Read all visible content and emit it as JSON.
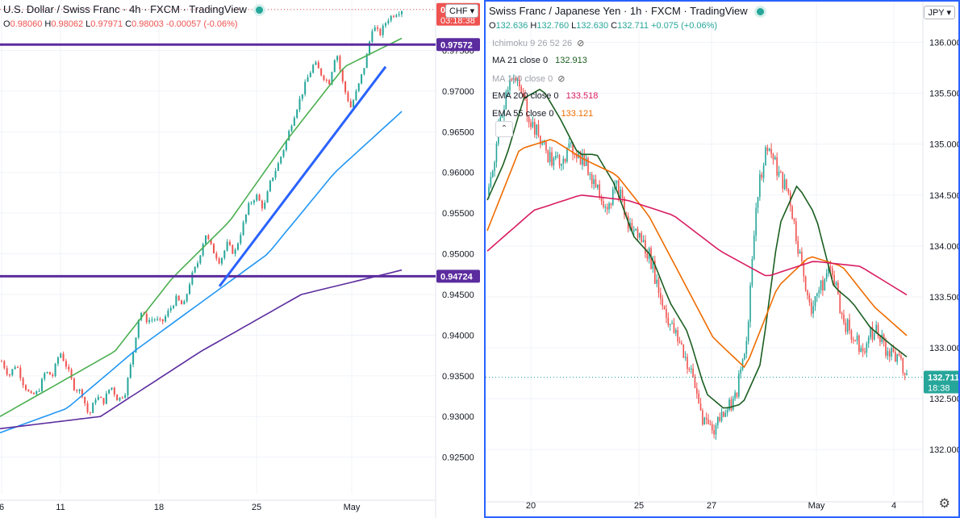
{
  "left_chart": {
    "header": {
      "symbol": "U.S. Dollar / Swiss Franc",
      "interval": "4h",
      "broker": "FXCM",
      "platform": "TradingView"
    },
    "ohlc": {
      "o": "0.98060",
      "h": "0.98062",
      "l": "0.97971",
      "c": "0.98003",
      "change": "-0.00057",
      "change_pct": "(-0.06%)"
    },
    "currency": "CHF",
    "price_tags": [
      {
        "value": "0.98003",
        "sub": "03:18:38",
        "color": "#ef5350"
      },
      {
        "value": "0.97572",
        "color": "#5b2c9e"
      },
      {
        "value": "0.94724",
        "color": "#5b2c9e"
      }
    ]
  },
  "right_chart": {
    "header": {
      "symbol": "Swiss Franc / Japanese Yen",
      "interval": "1h",
      "broker": "FXCM",
      "platform": "TradingView"
    },
    "ohlc": {
      "o": "132.636",
      "h": "132.760",
      "l": "132.630",
      "c": "132.711",
      "change": "+0.075",
      "change_pct": "(+0.06%)"
    },
    "currency": "JPY",
    "indicators": [
      {
        "label": "Ichimoku 9 26 52 26",
        "value": "",
        "color": "#a0a3ab",
        "hidden": true
      },
      {
        "label": "MA 21 close 0",
        "value": "132.913",
        "color": "#1b5e20",
        "hidden": false
      },
      {
        "label": "MA 100 close 0",
        "value": "",
        "color": "#a0a3ab",
        "hidden": true
      },
      {
        "label": "EMA 200 close 0",
        "value": "133.518",
        "color": "#d81b60",
        "hidden": false
      },
      {
        "label": "EMA 55 close 0",
        "value": "133.121",
        "color": "#ef6c00",
        "hidden": false
      }
    ],
    "price_tags": [
      {
        "value": "132.711",
        "sub": "18:38",
        "color": "#26a69a"
      }
    ]
  },
  "chart_data": [
    {
      "type": "candlestick",
      "title": "U.S. Dollar / Swiss Franc · 4h · FXCM",
      "ylim": [
        0.9205,
        0.9812
      ],
      "y_ticks": [
        "0.98000",
        "0.97500",
        "0.97000",
        "0.96500",
        "0.96000",
        "0.95500",
        "0.95000",
        "0.94500",
        "0.94000",
        "0.93500",
        "0.93000",
        "0.92500"
      ],
      "x_ticks": [
        "6",
        "11",
        "18",
        "25",
        "May"
      ],
      "horizontal_levels": [
        0.97572,
        0.94724
      ],
      "trendline": {
        "from": 0.946,
        "to": 0.973,
        "color": "#2962ff"
      },
      "last_price": 0.98003,
      "series_path": [
        0.9368,
        0.935,
        0.9365,
        0.934,
        0.9325,
        0.933,
        0.9355,
        0.935,
        0.938,
        0.936,
        0.9335,
        0.933,
        0.93,
        0.9325,
        0.9318,
        0.9338,
        0.932,
        0.933,
        0.9375,
        0.943,
        0.9418,
        0.942,
        0.9415,
        0.943,
        0.9445,
        0.9435,
        0.947,
        0.949,
        0.9525,
        0.9505,
        0.949,
        0.9512,
        0.95,
        0.953,
        0.956,
        0.9572,
        0.9555,
        0.959,
        0.961,
        0.9635,
        0.9665,
        0.969,
        0.9715,
        0.9735,
        0.972,
        0.971,
        0.975,
        0.9705,
        0.968,
        0.9705,
        0.9735,
        0.978,
        0.977,
        0.9788,
        0.9795,
        0.98
      ],
      "moving_averages": [
        {
          "color": "#4caf50",
          "values": [
            0.93,
            0.934,
            0.938,
            0.947,
            0.954,
            0.964,
            0.973,
            0.9765
          ]
        },
        {
          "color": "#2196f3",
          "values": [
            0.928,
            0.931,
            0.938,
            0.944,
            0.95,
            0.96,
            0.9675
          ]
        },
        {
          "color": "#5b2c9e",
          "values": [
            0.9285,
            0.93,
            0.938,
            0.945,
            0.948
          ]
        }
      ]
    },
    {
      "type": "candlestick",
      "title": "Swiss Franc / Japanese Yen · 1h · FXCM",
      "ylim": [
        131.55,
        136.4
      ],
      "y_ticks": [
        "136.000",
        "135.500",
        "135.000",
        "134.500",
        "134.000",
        "133.500",
        "133.000",
        "132.500",
        "132.000"
      ],
      "x_ticks": [
        "20",
        "25",
        "27",
        "May",
        "4"
      ],
      "last_price": 132.711,
      "series_path": [
        134.5,
        135.2,
        135.7,
        135.5,
        135.2,
        135.0,
        134.8,
        134.9,
        134.95,
        134.8,
        134.6,
        134.4,
        134.6,
        134.2,
        134.1,
        133.9,
        133.5,
        133.2,
        133.0,
        132.7,
        132.3,
        132.2,
        132.4,
        132.5,
        133.0,
        134.5,
        135.0,
        134.7,
        134.5,
        133.9,
        133.4,
        133.6,
        133.8,
        133.3,
        133.1,
        133.0,
        133.2,
        133.0,
        132.9,
        132.711
      ],
      "moving_averages": [
        {
          "name": "MA 21 close 0",
          "color": "#1b5e20",
          "values": [
            134.45,
            134.85,
            135.45,
            135.55,
            135.25,
            134.9,
            134.9,
            134.6,
            134.1,
            133.9,
            133.45,
            133.15,
            132.55,
            132.4,
            132.45,
            132.85,
            134.2,
            134.6,
            134.3,
            133.6,
            133.45,
            133.2,
            133.05,
            132.91
          ]
        },
        {
          "name": "EMA 55 close 0",
          "color": "#ef6c00",
          "values": [
            134.15,
            134.95,
            135.05,
            134.85,
            134.7,
            134.3,
            133.7,
            133.1,
            132.8,
            133.6,
            133.9,
            133.8,
            133.4,
            133.12
          ]
        },
        {
          "name": "EMA 200 close 0",
          "color": "#d81b60",
          "values": [
            133.95,
            134.35,
            134.5,
            134.45,
            134.3,
            133.95,
            133.7,
            133.85,
            133.8,
            133.52
          ]
        }
      ]
    }
  ]
}
